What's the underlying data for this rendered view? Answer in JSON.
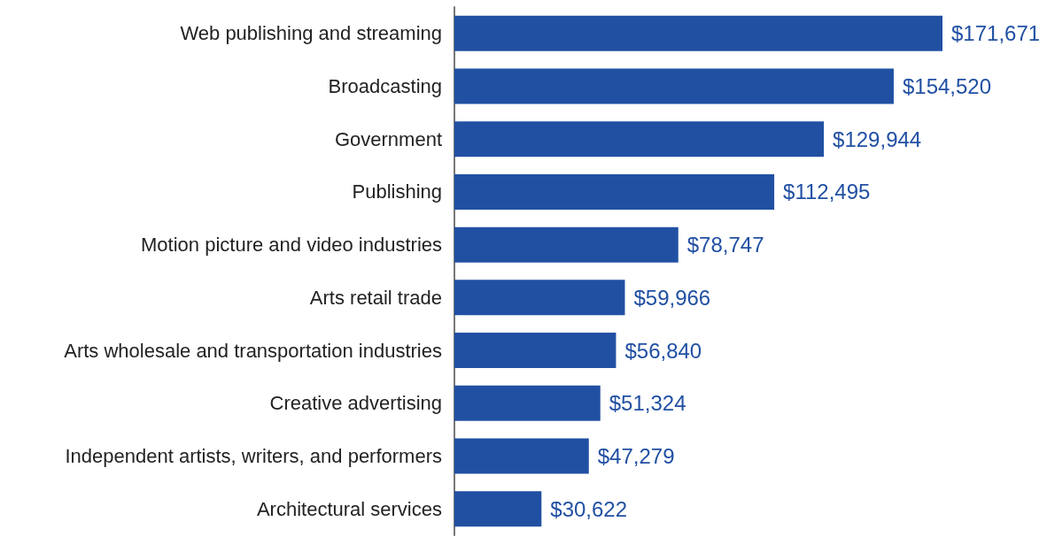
{
  "chart_data": {
    "type": "bar",
    "orientation": "horizontal",
    "categories": [
      "Web publishing and streaming",
      "Broadcasting",
      "Government",
      "Publishing",
      "Motion picture and video industries",
      "Arts retail trade",
      "Arts wholesale and transportation industries",
      "Creative advertising",
      "Independent artists, writers, and performers",
      "Architectural services"
    ],
    "values": [
      171671,
      154520,
      129944,
      112495,
      78747,
      59966,
      56840,
      51324,
      47279,
      30622
    ],
    "value_labels": [
      "$171,671",
      "$154,520",
      "$129,944",
      "$112,495",
      "$78,747",
      "$59,966",
      "$56,840",
      "$51,324",
      "$47,279",
      "$30,622"
    ],
    "color": "#2150a3"
  }
}
